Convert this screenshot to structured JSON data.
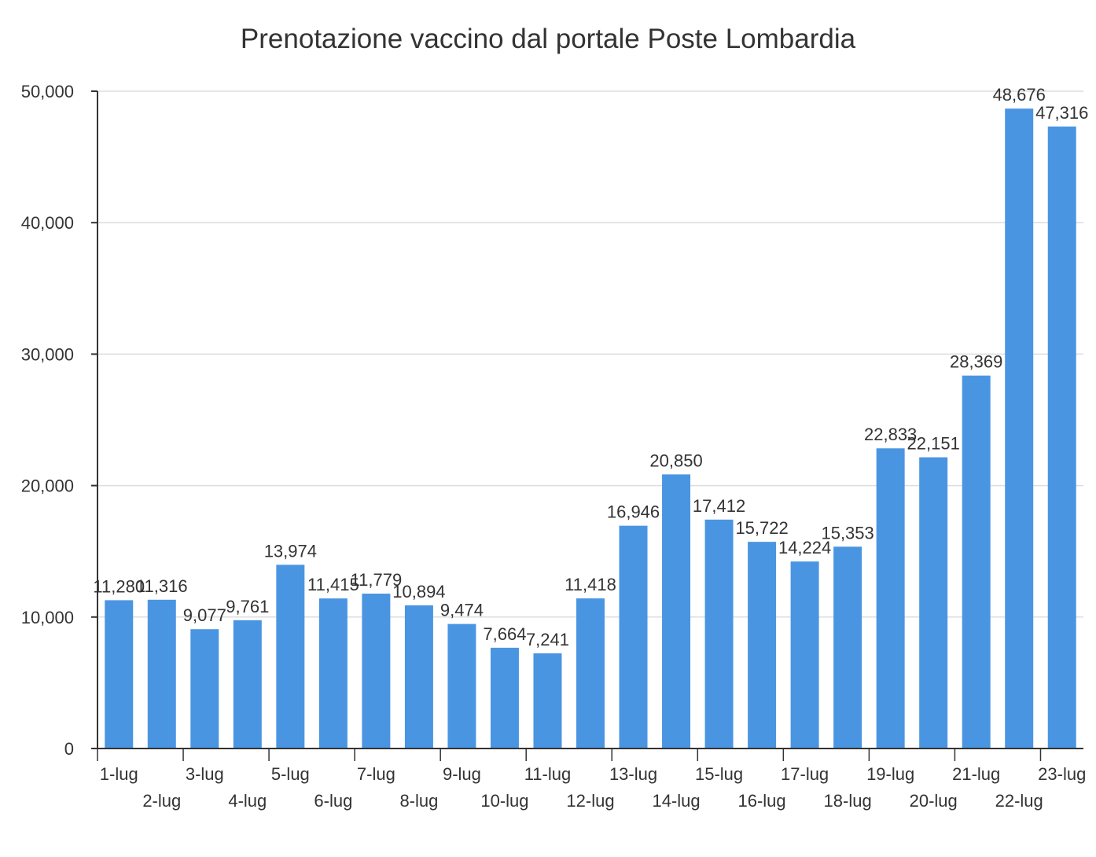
{
  "chart_data": {
    "type": "bar",
    "title": "Prenotazione vaccino dal portale Poste Lombardia",
    "xlabel": "",
    "ylabel": "",
    "categories": [
      "1-lug",
      "2-lug",
      "3-lug",
      "4-lug",
      "5-lug",
      "6-lug",
      "7-lug",
      "8-lug",
      "9-lug",
      "10-lug",
      "11-lug",
      "12-lug",
      "13-lug",
      "14-lug",
      "15-lug",
      "16-lug",
      "17-lug",
      "18-lug",
      "19-lug",
      "20-lug",
      "21-lug",
      "22-lug",
      "23-lug"
    ],
    "values": [
      11280,
      11316,
      9077,
      9761,
      13974,
      11415,
      11779,
      10894,
      9474,
      7664,
      7241,
      11418,
      16946,
      20850,
      17412,
      15722,
      14224,
      15353,
      22833,
      22151,
      28369,
      48676,
      47316
    ],
    "value_labels": [
      "11,280",
      "11,316",
      "9,077",
      "9,761",
      "13,974",
      "11,415",
      "11,779",
      "10,894",
      "9,474",
      "7,664",
      "7,241",
      "11,418",
      "16,946",
      "20,850",
      "17,412",
      "15,722",
      "14,224",
      "15,353",
      "22,833",
      "22,151",
      "28,369",
      "48,676",
      "47,316"
    ],
    "ylim": [
      0,
      50000
    ],
    "yticks": [
      0,
      10000,
      20000,
      30000,
      40000,
      50000
    ],
    "ytick_labels": [
      "0",
      "10,000",
      "20,000",
      "30,000",
      "40,000",
      "50,000"
    ],
    "grid": true,
    "bar_color": "#4a95e2",
    "grid_color": "#dddddd",
    "axis_color": "#333333"
  }
}
